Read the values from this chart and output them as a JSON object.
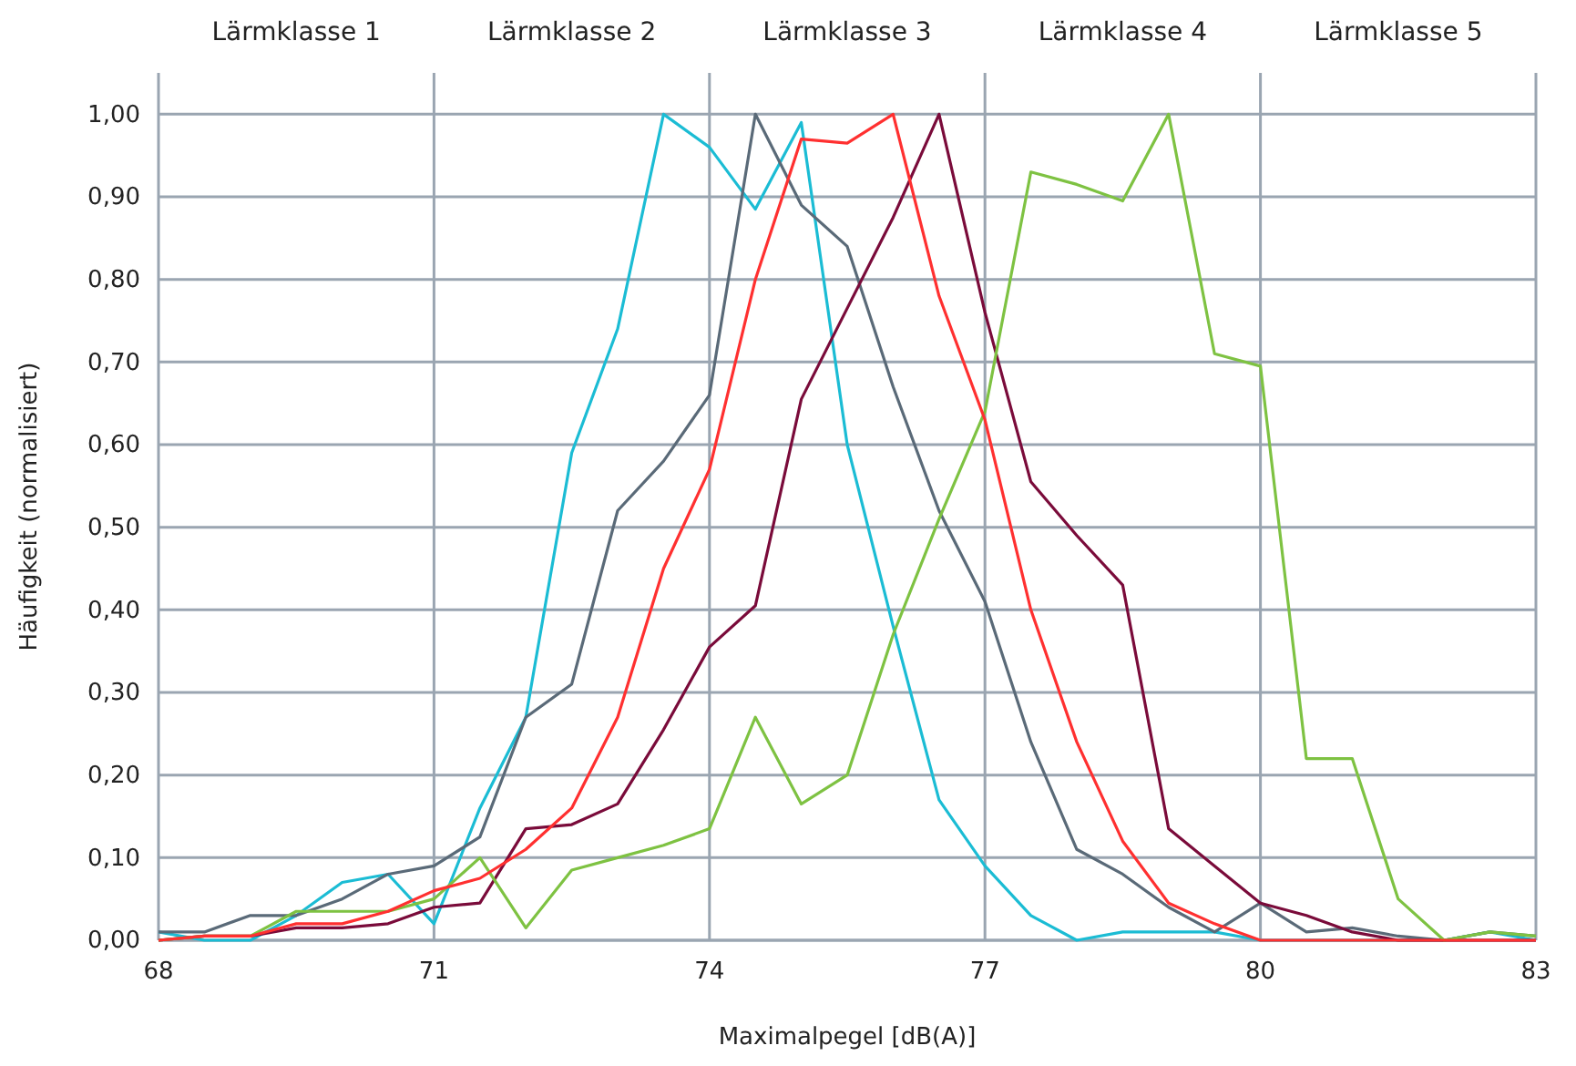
{
  "chart_data": {
    "type": "line",
    "xlabel": "Maximalpegel [dB(A)]",
    "ylabel": "Häufigkeit (normalisiert)",
    "x": [
      68,
      68.5,
      69,
      69.5,
      70,
      70.5,
      71,
      71.5,
      72,
      72.5,
      73,
      73.5,
      74,
      74.5,
      75,
      75.5,
      76,
      76.5,
      77,
      77.5,
      78,
      78.5,
      79,
      79.5,
      80,
      80.5,
      81,
      81.5,
      82,
      82.5,
      83
    ],
    "series": [
      {
        "color": "#1bbcd4",
        "values": [
          0.01,
          0.0,
          0.0,
          0.03,
          0.07,
          0.08,
          0.02,
          0.16,
          0.27,
          0.59,
          0.74,
          1.0,
          0.96,
          0.885,
          0.99,
          0.6,
          0.38,
          0.17,
          0.09,
          0.03,
          0.0,
          0.01,
          0.01,
          0.01,
          0.0,
          0.0,
          0.0,
          0.0,
          0.0,
          0.01,
          0.0
        ]
      },
      {
        "color": "#5a6a78",
        "values": [
          0.01,
          0.01,
          0.03,
          0.03,
          0.05,
          0.08,
          0.09,
          0.125,
          0.27,
          0.31,
          0.52,
          0.58,
          0.66,
          1.0,
          0.89,
          0.84,
          0.67,
          0.52,
          0.41,
          0.24,
          0.11,
          0.08,
          0.04,
          0.01,
          0.045,
          0.01,
          0.015,
          0.005,
          0.0,
          0.01,
          0.005
        ]
      },
      {
        "color": "#7a0b3a",
        "values": [
          0.0,
          0.005,
          0.005,
          0.015,
          0.015,
          0.02,
          0.04,
          0.045,
          0.135,
          0.14,
          0.165,
          0.255,
          0.355,
          0.405,
          0.655,
          0.765,
          0.875,
          1.0,
          0.76,
          0.555,
          0.49,
          0.43,
          0.135,
          0.09,
          0.045,
          0.03,
          0.01,
          0.0,
          0.0,
          0.0,
          0.0
        ]
      },
      {
        "color": "#7ec242",
        "values": [
          0.0,
          0.005,
          0.005,
          0.035,
          0.035,
          0.035,
          0.05,
          0.1,
          0.015,
          0.085,
          0.1,
          0.115,
          0.135,
          0.27,
          0.165,
          0.2,
          0.37,
          0.51,
          0.64,
          0.93,
          0.915,
          0.895,
          1.0,
          0.71,
          0.695,
          0.22,
          0.22,
          0.05,
          0.0,
          0.01,
          0.005
        ]
      },
      {
        "color": "#ff3030",
        "values": [
          0.0,
          0.005,
          0.005,
          0.02,
          0.02,
          0.035,
          0.06,
          0.075,
          0.11,
          0.16,
          0.27,
          0.45,
          0.57,
          0.8,
          0.97,
          0.965,
          1.0,
          0.78,
          0.63,
          0.4,
          0.24,
          0.12,
          0.045,
          0.02,
          0.0,
          0.0,
          0.0,
          0.0,
          0.0,
          0.0,
          0.0
        ]
      }
    ],
    "xlim": [
      68,
      83
    ],
    "xticks": [
      68,
      71,
      74,
      77,
      80,
      83
    ],
    "ylim": [
      0,
      1.05
    ],
    "yticks": [
      {
        "value": 0,
        "label": "0,00"
      },
      {
        "value": 0.1,
        "label": "0,10"
      },
      {
        "value": 0.2,
        "label": "0,20"
      },
      {
        "value": 0.3,
        "label": "0,30"
      },
      {
        "value": 0.4,
        "label": "0,40"
      },
      {
        "value": 0.5,
        "label": "0,50"
      },
      {
        "value": 0.6,
        "label": "0,60"
      },
      {
        "value": 0.7,
        "label": "0,70"
      },
      {
        "value": 0.8,
        "label": "0,80"
      },
      {
        "value": 0.9,
        "label": "0,90"
      },
      {
        "value": 1.0,
        "label": "1,00"
      }
    ],
    "grid": "y",
    "ref_lines": [
      {
        "axis": "x",
        "value": 71
      },
      {
        "axis": "x",
        "value": 74
      },
      {
        "axis": "x",
        "value": 77
      },
      {
        "axis": "x",
        "value": 80
      }
    ],
    "annotations": [
      "Lärmklasse 1",
      "Lärmklasse 2",
      "Lärmklasse 3",
      "Lärmklasse 4",
      "Lärmklasse 5"
    ]
  }
}
